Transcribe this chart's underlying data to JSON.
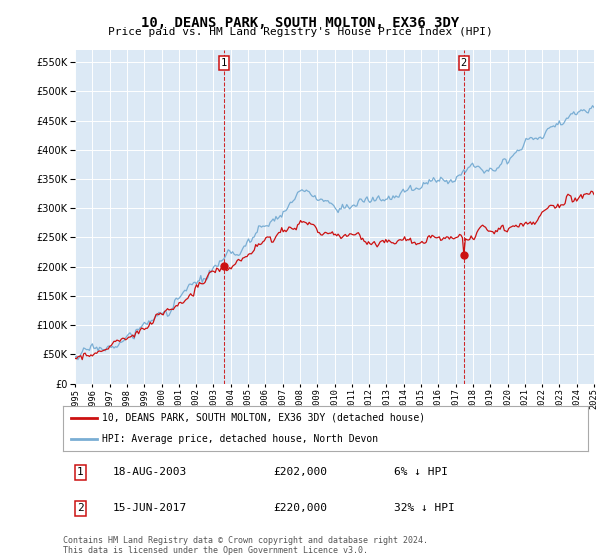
{
  "title": "10, DEANS PARK, SOUTH MOLTON, EX36 3DY",
  "subtitle": "Price paid vs. HM Land Registry's House Price Index (HPI)",
  "ylim": [
    0,
    570000
  ],
  "yticks": [
    0,
    50000,
    100000,
    150000,
    200000,
    250000,
    300000,
    350000,
    400000,
    450000,
    500000,
    550000
  ],
  "hpi_color": "#7aaed4",
  "price_color": "#cc1111",
  "marker1_x": 2003.63,
  "marker1_y": 202000,
  "marker2_x": 2017.46,
  "marker2_y": 220000,
  "vline1_x": 2003.63,
  "vline2_x": 2017.46,
  "legend_house": "10, DEANS PARK, SOUTH MOLTON, EX36 3DY (detached house)",
  "legend_hpi": "HPI: Average price, detached house, North Devon",
  "annotation1_date": "18-AUG-2003",
  "annotation1_price": "£202,000",
  "annotation1_hpi": "6% ↓ HPI",
  "annotation2_date": "15-JUN-2017",
  "annotation2_price": "£220,000",
  "annotation2_hpi": "32% ↓ HPI",
  "footer": "Contains HM Land Registry data © Crown copyright and database right 2024.\nThis data is licensed under the Open Government Licence v3.0.",
  "background_color": "#dce9f5",
  "xmin": 1995,
  "xmax": 2025,
  "n_points": 360
}
